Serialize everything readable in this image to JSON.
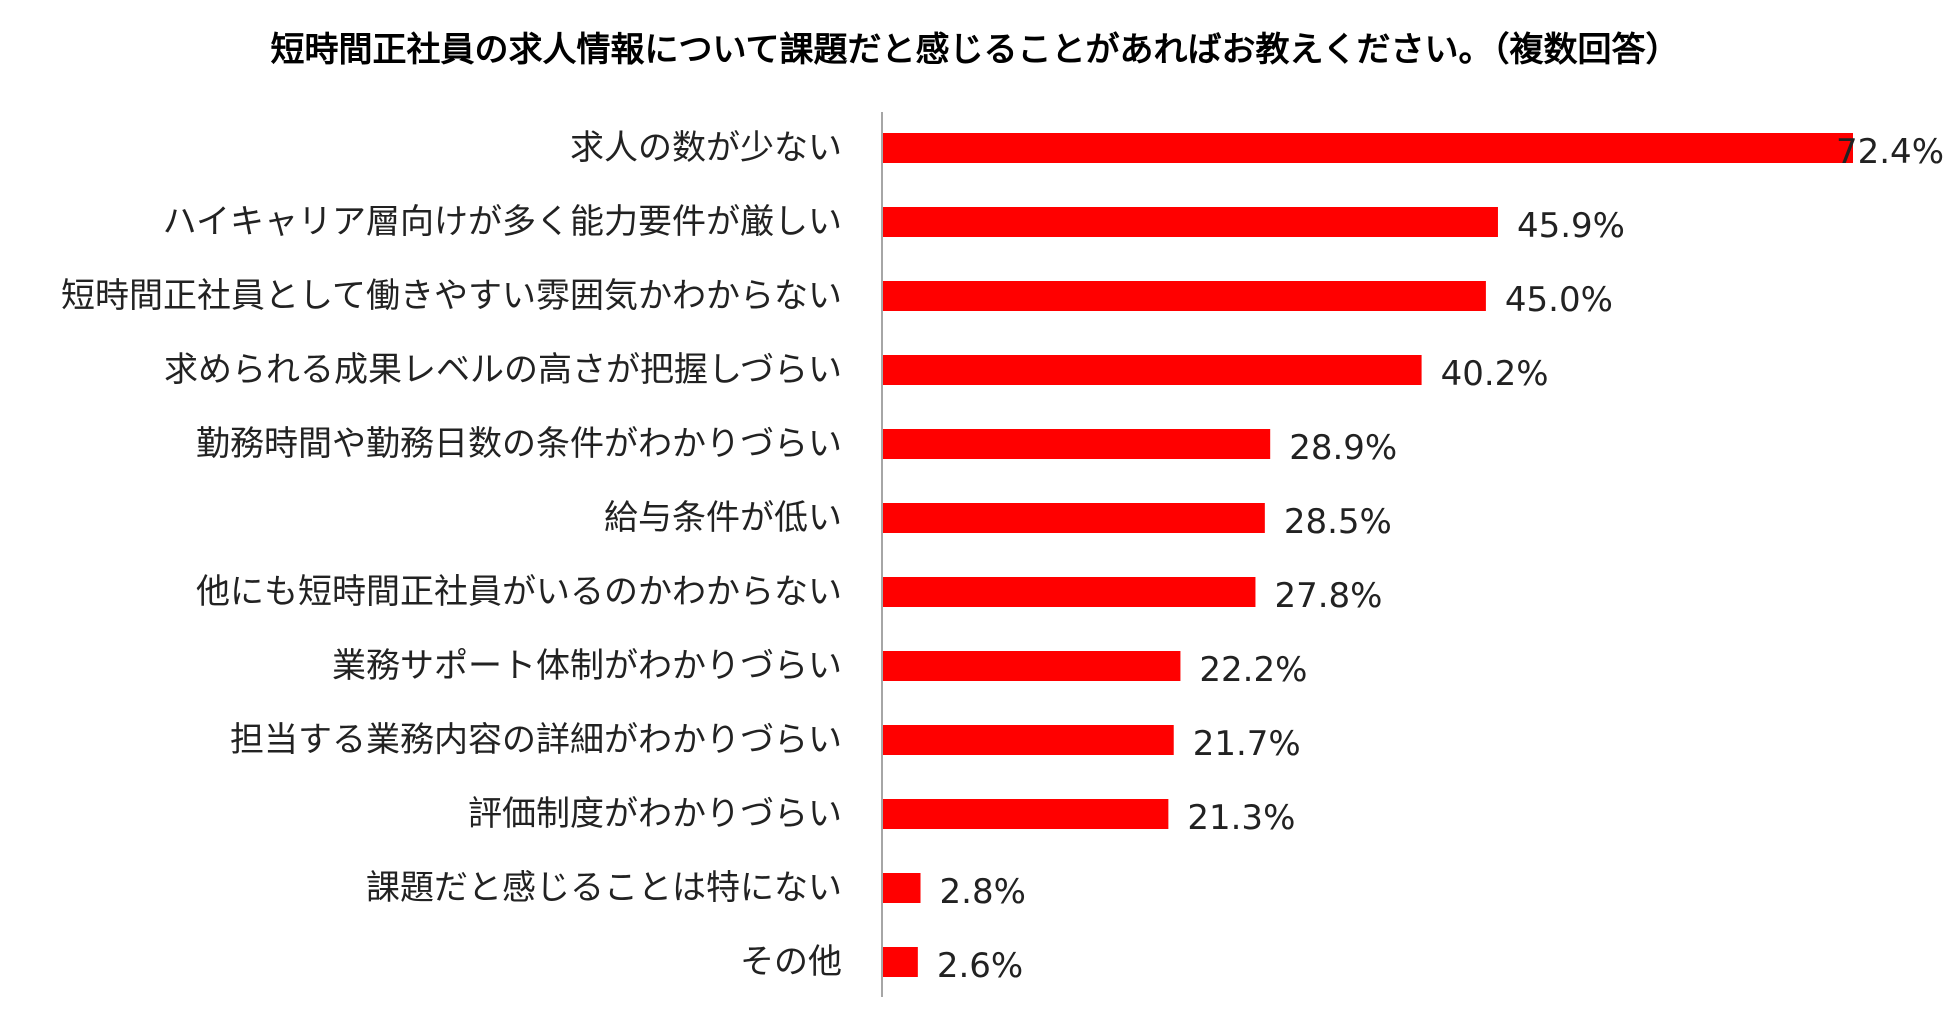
{
  "chart_data": {
    "type": "bar",
    "orientation": "horizontal",
    "title": "短時間正社員の求人情報について課題だと感じることがあればお教えください。（複数回答）",
    "categories": [
      "求人の数が少ない",
      "ハイキャリア層向けが多く能力要件が厳しい",
      "短時間正社員として働きやすい雰囲気かわからない",
      "求められる成果レベルの高さが把握しづらい",
      "勤務時間や勤務日数の条件がわかりづらい",
      "給与条件が低い",
      "他にも短時間正社員がいるのかわからない",
      "業務サポート体制がわかりづらい",
      "担当する業務内容の詳細がわかりづらい",
      "評価制度がわかりづらい",
      "課題だと感じることは特にない",
      "その他"
    ],
    "values": [
      72.4,
      45.9,
      45.0,
      40.2,
      28.9,
      28.5,
      27.8,
      22.2,
      21.7,
      21.3,
      2.8,
      2.6
    ],
    "value_labels": [
      "72.4%",
      "45.9%",
      "45.0%",
      "40.2%",
      "28.9%",
      "28.5%",
      "27.8%",
      "22.2%",
      "21.7%",
      "21.3%",
      "2.8%",
      "2.6%"
    ],
    "unit": "%",
    "xlim": [
      0,
      80
    ],
    "bar_color": "#ff0000",
    "axis_color": "#888888",
    "grid": false,
    "legend": "none"
  }
}
